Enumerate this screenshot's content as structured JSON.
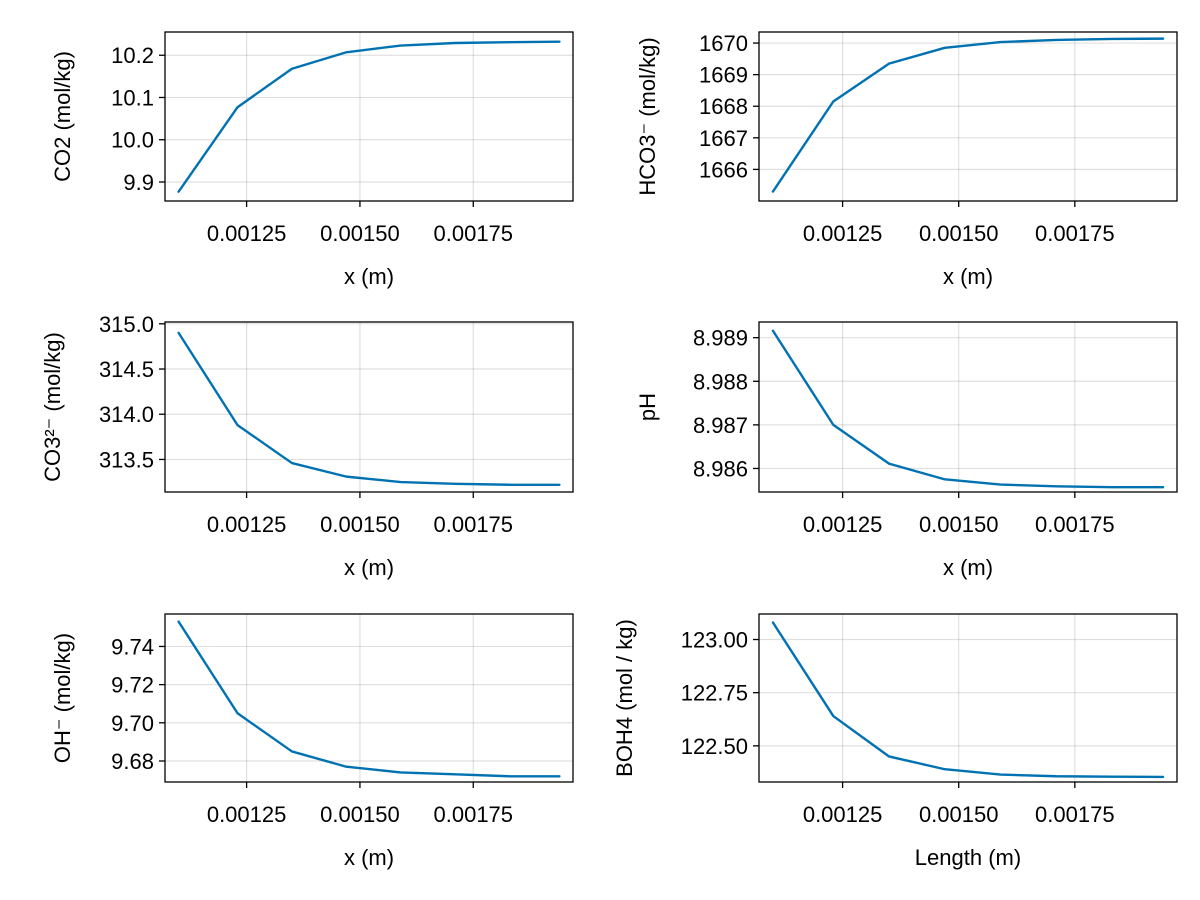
{
  "figure": {
    "accent_color": "#0072b2",
    "grid": true
  },
  "chart_data": [
    {
      "type": "line",
      "xlabel": "x (m)",
      "ylabel": "CO2 (mol/kg)",
      "xlim": [
        0.00107,
        0.00197
      ],
      "ylim": [
        9.855,
        10.255
      ],
      "xticks": [
        0.00125,
        0.0015,
        0.00175
      ],
      "xtick_labels": [
        "0.00125",
        "0.00150",
        "0.00175"
      ],
      "yticks": [
        9.9,
        10.0,
        10.1,
        10.2
      ],
      "ytick_labels": [
        "9.9",
        "10.0",
        "10.1",
        "10.2"
      ],
      "series": [
        {
          "x": [
            0.0011,
            0.00123,
            0.00135,
            0.00147,
            0.00159,
            0.00171,
            0.00183,
            0.00194
          ],
          "y": [
            9.877,
            10.077,
            10.168,
            10.207,
            10.223,
            10.229,
            10.231,
            10.232
          ]
        }
      ]
    },
    {
      "type": "line",
      "xlabel": "x (m)",
      "ylabel": "HCO3⁻ (mol/kg)",
      "xlim": [
        0.00107,
        0.00197
      ],
      "ylim": [
        1665.0,
        1670.35
      ],
      "xticks": [
        0.00125,
        0.0015,
        0.00175
      ],
      "xtick_labels": [
        "0.00125",
        "0.00150",
        "0.00175"
      ],
      "yticks": [
        1666,
        1667,
        1668,
        1669,
        1670
      ],
      "ytick_labels": [
        "1666",
        "1667",
        "1668",
        "1669",
        "1670"
      ],
      "series": [
        {
          "x": [
            0.0011,
            0.00123,
            0.00135,
            0.00147,
            0.00159,
            0.00171,
            0.00183,
            0.00194
          ],
          "y": [
            1665.3,
            1668.15,
            1669.35,
            1669.85,
            1670.03,
            1670.1,
            1670.13,
            1670.14
          ]
        }
      ]
    },
    {
      "type": "line",
      "xlabel": "x (m)",
      "ylabel": "CO3²⁻ (mol/kg)",
      "xlim": [
        0.00107,
        0.00197
      ],
      "ylim": [
        313.14,
        315.02
      ],
      "xticks": [
        0.00125,
        0.0015,
        0.00175
      ],
      "xtick_labels": [
        "0.00125",
        "0.00150",
        "0.00175"
      ],
      "yticks": [
        313.5,
        314.0,
        314.5,
        315.0
      ],
      "ytick_labels": [
        "313.5",
        "314.0",
        "314.5",
        "315.0"
      ],
      "series": [
        {
          "x": [
            0.0011,
            0.00123,
            0.00135,
            0.00147,
            0.00159,
            0.00171,
            0.00183,
            0.00194
          ],
          "y": [
            314.9,
            313.88,
            313.46,
            313.31,
            313.25,
            313.23,
            313.22,
            313.22
          ]
        }
      ]
    },
    {
      "type": "line",
      "xlabel": "x (m)",
      "ylabel": "pH",
      "xlim": [
        0.00107,
        0.00197
      ],
      "ylim": [
        8.98546,
        8.98936
      ],
      "xticks": [
        0.00125,
        0.0015,
        0.00175
      ],
      "xtick_labels": [
        "0.00125",
        "0.00150",
        "0.00175"
      ],
      "yticks": [
        8.986,
        8.987,
        8.988,
        8.989
      ],
      "ytick_labels": [
        "8.986",
        "8.987",
        "8.988",
        "8.989"
      ],
      "series": [
        {
          "x": [
            0.0011,
            0.00123,
            0.00135,
            0.00147,
            0.00159,
            0.00171,
            0.00183,
            0.00194
          ],
          "y": [
            8.98916,
            8.987,
            8.98611,
            8.98575,
            8.98563,
            8.98559,
            8.98557,
            8.98557
          ]
        }
      ]
    },
    {
      "type": "line",
      "xlabel": "x (m)",
      "ylabel": "OH⁻ (mol/kg)",
      "xlim": [
        0.00107,
        0.00197
      ],
      "ylim": [
        9.669,
        9.757
      ],
      "xticks": [
        0.00125,
        0.0015,
        0.00175
      ],
      "xtick_labels": [
        "0.00125",
        "0.00150",
        "0.00175"
      ],
      "yticks": [
        9.68,
        9.7,
        9.72,
        9.74
      ],
      "ytick_labels": [
        "9.68",
        "9.70",
        "9.72",
        "9.74"
      ],
      "series": [
        {
          "x": [
            0.0011,
            0.00123,
            0.00135,
            0.00147,
            0.00159,
            0.00171,
            0.00183,
            0.00194
          ],
          "y": [
            9.753,
            9.705,
            9.685,
            9.677,
            9.674,
            9.673,
            9.672,
            9.672
          ]
        }
      ]
    },
    {
      "type": "line",
      "xlabel": "Length (m)",
      "ylabel": "BOH4 (mol / kg)",
      "xlim": [
        0.00107,
        0.00197
      ],
      "ylim": [
        122.33,
        123.12
      ],
      "xticks": [
        0.00125,
        0.0015,
        0.00175
      ],
      "xtick_labels": [
        "0.00125",
        "0.00150",
        "0.00175"
      ],
      "yticks": [
        122.5,
        122.75,
        123.0
      ],
      "ytick_labels": [
        "122.50",
        "122.75",
        "123.00"
      ],
      "series": [
        {
          "x": [
            0.0011,
            0.00123,
            0.00135,
            0.00147,
            0.00159,
            0.00171,
            0.00183,
            0.00194
          ],
          "y": [
            123.08,
            122.64,
            122.45,
            122.39,
            122.365,
            122.357,
            122.355,
            122.354
          ]
        }
      ]
    }
  ]
}
